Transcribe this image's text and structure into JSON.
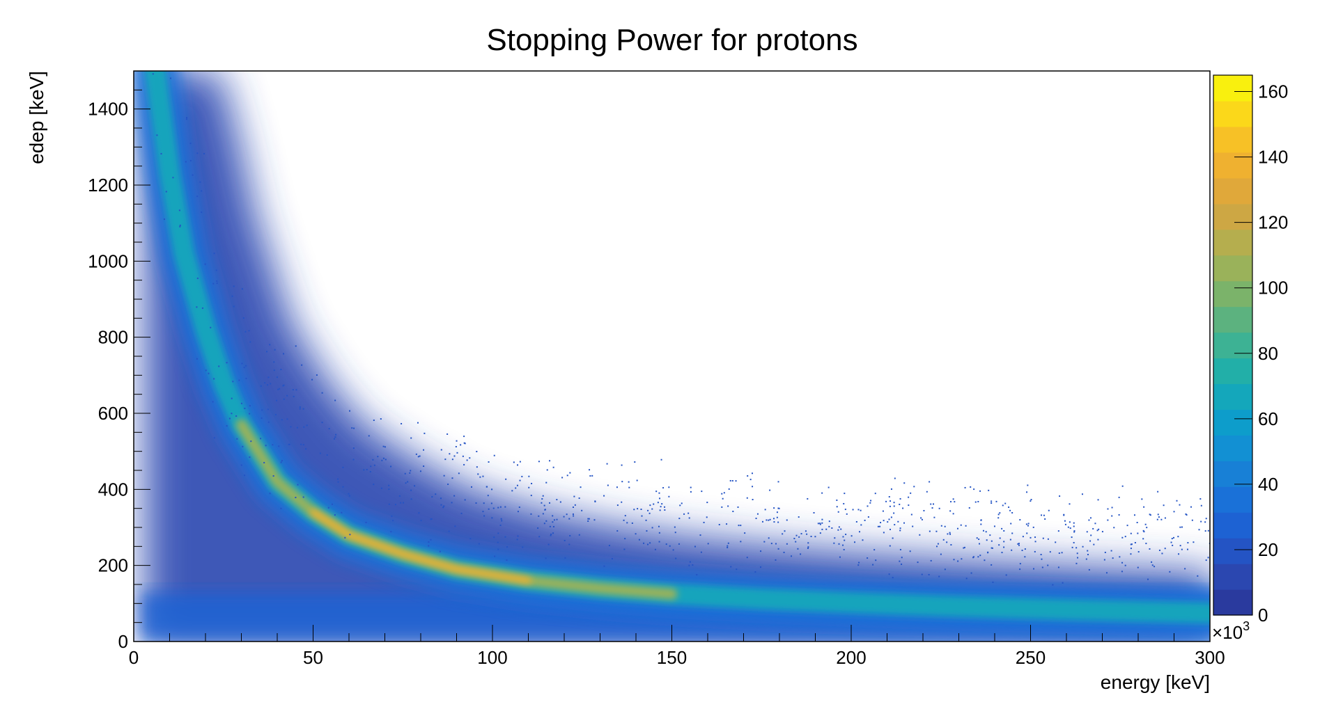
{
  "chart_data": {
    "type": "heatmap",
    "title": "Stopping Power for protons",
    "xlabel": "energy [keV]",
    "ylabel": "edep [keV]",
    "xlim": [
      0,
      300
    ],
    "ylim": [
      0,
      1500
    ],
    "x_ticks": [
      {
        "value": 0,
        "label": "0"
      },
      {
        "value": 50,
        "label": "50"
      },
      {
        "value": 100,
        "label": "100"
      },
      {
        "value": 150,
        "label": "150"
      },
      {
        "value": 200,
        "label": "200"
      },
      {
        "value": 250,
        "label": "250"
      },
      {
        "value": 300,
        "label": "300"
      }
    ],
    "y_ticks": [
      {
        "value": 0,
        "label": "0"
      },
      {
        "value": 200,
        "label": "200"
      },
      {
        "value": 400,
        "label": "400"
      },
      {
        "value": 600,
        "label": "600"
      },
      {
        "value": 800,
        "label": "800"
      },
      {
        "value": 1000,
        "label": "1000"
      },
      {
        "value": 1200,
        "label": "1200"
      },
      {
        "value": 1400,
        "label": "1400"
      }
    ],
    "colorbar": {
      "zlim": [
        0,
        165
      ],
      "ticks": [
        {
          "value": 0,
          "label": "0"
        },
        {
          "value": 20,
          "label": "20"
        },
        {
          "value": 40,
          "label": "40"
        },
        {
          "value": 60,
          "label": "60"
        },
        {
          "value": 80,
          "label": "80"
        },
        {
          "value": 100,
          "label": "100"
        },
        {
          "value": 120,
          "label": "120"
        },
        {
          "value": 140,
          "label": "140"
        },
        {
          "value": 160,
          "label": "160"
        }
      ],
      "exponent_prefix": "×10",
      "exponent_power": "3",
      "palette": [
        "#2a3a9e",
        "#2b47b0",
        "#2454c4",
        "#1d62d3",
        "#1a71d8",
        "#1880d6",
        "#1290d3",
        "#0d9dcb",
        "#14a7bb",
        "#22afa8",
        "#3db294",
        "#5cb27f",
        "#7bb36a",
        "#9ab25a",
        "#b5ae4e",
        "#cda744",
        "#e0a83a",
        "#efb130",
        "#f7c126",
        "#fbd81a",
        "#f9f00e"
      ]
    },
    "ridge_curve": [
      {
        "x": 6,
        "y": 1500
      },
      {
        "x": 10,
        "y": 1230
      },
      {
        "x": 14,
        "y": 1020
      },
      {
        "x": 20,
        "y": 820
      },
      {
        "x": 25,
        "y": 680
      },
      {
        "x": 30,
        "y": 570
      },
      {
        "x": 40,
        "y": 420
      },
      {
        "x": 50,
        "y": 340
      },
      {
        "x": 60,
        "y": 280
      },
      {
        "x": 75,
        "y": 230
      },
      {
        "x": 90,
        "y": 190
      },
      {
        "x": 110,
        "y": 160
      },
      {
        "x": 130,
        "y": 140
      },
      {
        "x": 150,
        "y": 125
      },
      {
        "x": 175,
        "y": 112
      },
      {
        "x": 200,
        "y": 102
      },
      {
        "x": 230,
        "y": 92
      },
      {
        "x": 260,
        "y": 84
      },
      {
        "x": 300,
        "y": 75
      }
    ],
    "grid": false,
    "legend": "colorbar-right"
  }
}
